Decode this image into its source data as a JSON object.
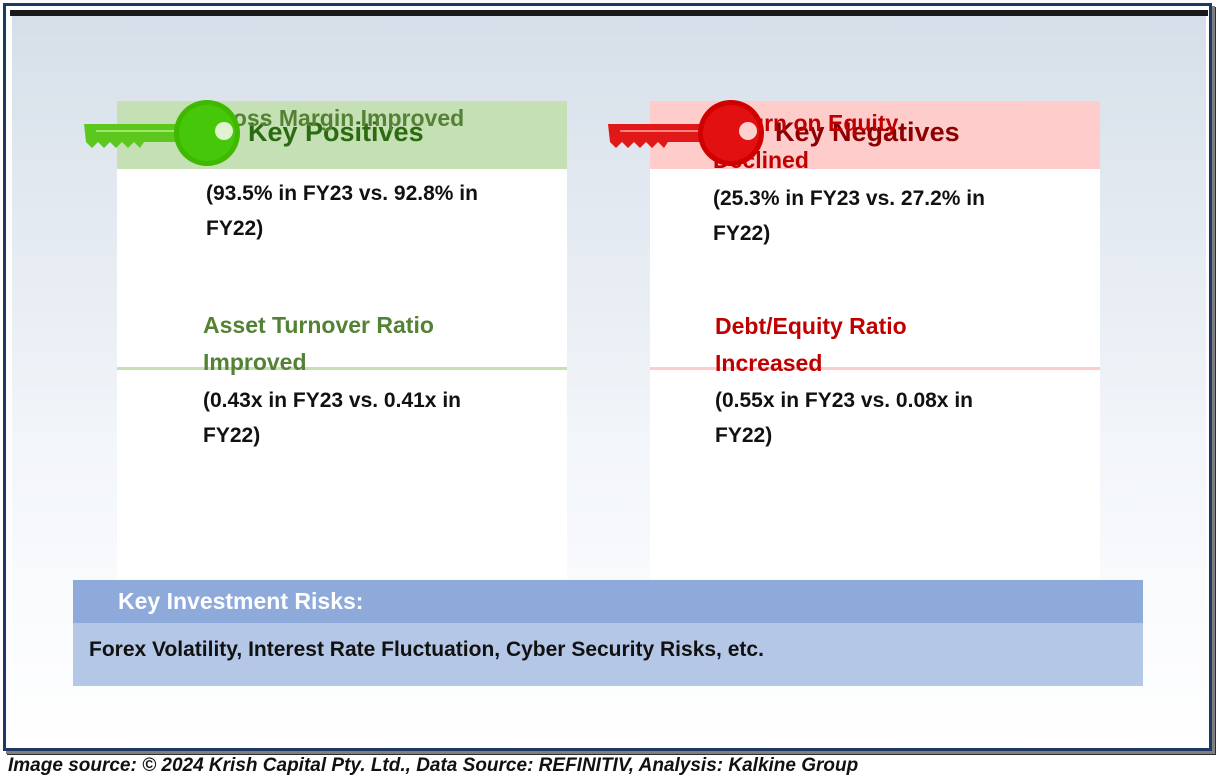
{
  "positives": {
    "title": "Key Positives",
    "color": "#548235",
    "items": [
      {
        "title": "Gross Margin Improved",
        "detail": "(93.5% in FY23 vs. 92.8% in FY22)"
      },
      {
        "title": "Asset Turnover Ratio Improved",
        "detail": "(0.43x in FY23 vs. 0.41x in FY22)"
      }
    ]
  },
  "negatives": {
    "title": "Key Negatives",
    "color": "#c00000",
    "items": [
      {
        "title": "Return on Equity Declined",
        "detail": "(25.3% in FY23 vs. 27.2% in FY22)"
      },
      {
        "title": "Debt/Equity Ratio Increased",
        "detail": "(0.55x in FY23 vs. 0.08x in FY22)"
      }
    ]
  },
  "risks": {
    "title": "Key Investment Risks:",
    "text": "Forex Volatility, Interest Rate Fluctuation, Cyber Security Risks, etc."
  },
  "footer": {
    "source": "Image source: © 2024 Krish Capital Pty. Ltd., Data Source: REFINITIV, Analysis: Kalkine Group"
  },
  "icons": {
    "positive_key": "key-icon-green",
    "negative_key": "key-icon-red"
  }
}
